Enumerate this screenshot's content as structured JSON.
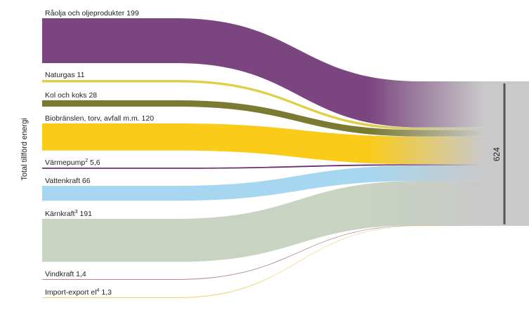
{
  "chart_data": {
    "type": "sankey",
    "ylabel": "Total tillförd energi",
    "total": {
      "label": "624",
      "value": 624
    },
    "flows": [
      {
        "name": "Råolja och oljeprodukter",
        "sup": "",
        "value_label": "199",
        "value": 199,
        "color": "#7b467f"
      },
      {
        "name": "Naturgas",
        "sup": "",
        "value_label": "11",
        "value": 11,
        "color": "#e0cf4a"
      },
      {
        "name": "Kol och koks",
        "sup": "",
        "value_label": "28",
        "value": 28,
        "color": "#7a7a32"
      },
      {
        "name": "Biobränslen, torv, avfall m.m.",
        "sup": "",
        "value_label": "120",
        "value": 120,
        "color": "#fbcb1a"
      },
      {
        "name": "Värmepump",
        "sup": "2",
        "value_label": "5,6",
        "value": 5.6,
        "color": "#6b2f6b"
      },
      {
        "name": "Vattenkraft",
        "sup": "",
        "value_label": "66",
        "value": 66,
        "color": "#a7d7f0"
      },
      {
        "name": "Kärnkraft",
        "sup": "3",
        "value_label": "191",
        "value": 191,
        "color": "#c8d3c2"
      },
      {
        "name": "Vindkraft",
        "sup": "",
        "value_label": "1,4",
        "value": 1.4,
        "color": "#b08a96"
      },
      {
        "name": "Import-export el",
        "sup": "4",
        "value_label": "1,3",
        "value": 1.3,
        "color": "#f0d27a"
      }
    ],
    "sink_color": "#c9c9c9",
    "bar_color": "#555555"
  }
}
